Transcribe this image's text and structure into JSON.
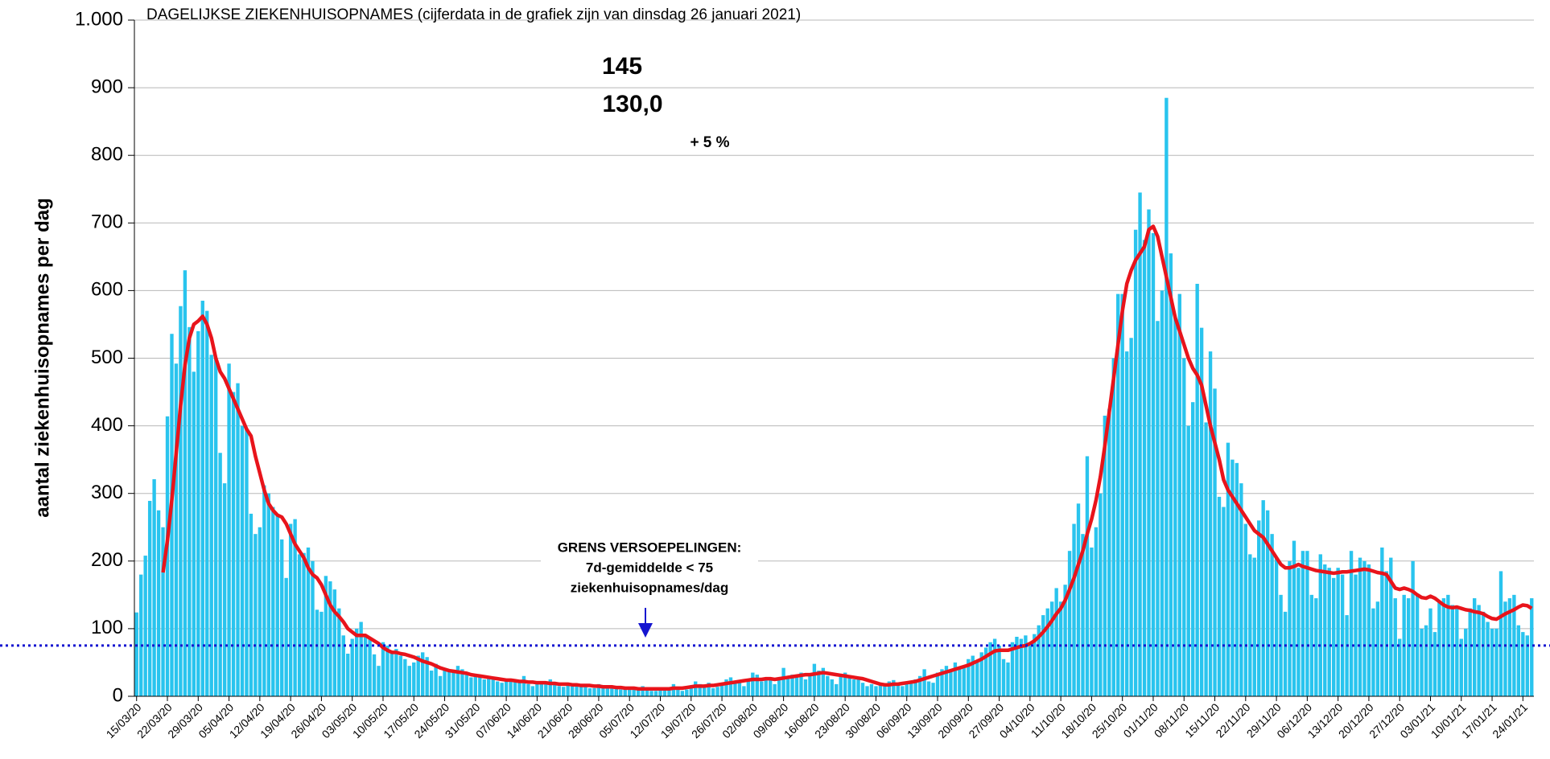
{
  "chart_data": {
    "type": "bar",
    "title": "DAGELIJKSE ZIEKENHUISOPNAMES (cijferdata in de grafiek zijn van dinsdag 26 januari 2021)",
    "y_label": "aantal ziekenhuisopnames per dag",
    "categories": [
      "15/03/20",
      null,
      null,
      null,
      null,
      null,
      null,
      "22/03/20",
      null,
      null,
      null,
      null,
      null,
      null,
      "29/03/20",
      null,
      null,
      null,
      null,
      null,
      null,
      "05/04/20",
      null,
      null,
      null,
      null,
      null,
      null,
      "12/04/20",
      null,
      null,
      null,
      null,
      null,
      null,
      "19/04/20",
      null,
      null,
      null,
      null,
      null,
      null,
      "26/04/20",
      null,
      null,
      null,
      null,
      null,
      null,
      "03/05/20",
      null,
      null,
      null,
      null,
      null,
      null,
      "10/05/20",
      null,
      null,
      null,
      null,
      null,
      null,
      "17/05/20",
      null,
      null,
      null,
      null,
      null,
      null,
      "24/05/20",
      null,
      null,
      null,
      null,
      null,
      null,
      "31/05/20",
      null,
      null,
      null,
      null,
      null,
      null,
      "07/06/20",
      null,
      null,
      null,
      null,
      null,
      null,
      "14/06/20",
      null,
      null,
      null,
      null,
      null,
      null,
      "21/06/20",
      null,
      null,
      null,
      null,
      null,
      null,
      "28/06/20",
      null,
      null,
      null,
      null,
      null,
      null,
      "05/07/20",
      null,
      null,
      null,
      null,
      null,
      null,
      "12/07/20",
      null,
      null,
      null,
      null,
      null,
      null,
      "19/07/20",
      null,
      null,
      null,
      null,
      null,
      null,
      "26/07/20",
      null,
      null,
      null,
      null,
      null,
      null,
      "02/08/20",
      null,
      null,
      null,
      null,
      null,
      null,
      "09/08/20",
      null,
      null,
      null,
      null,
      null,
      null,
      "16/08/20",
      null,
      null,
      null,
      null,
      null,
      null,
      "23/08/20",
      null,
      null,
      null,
      null,
      null,
      null,
      "30/08/20",
      null,
      null,
      null,
      null,
      null,
      null,
      "06/09/20",
      null,
      null,
      null,
      null,
      null,
      null,
      "13/09/20",
      null,
      null,
      null,
      null,
      null,
      null,
      "20/09/20",
      null,
      null,
      null,
      null,
      null,
      null,
      "27/09/20",
      null,
      null,
      null,
      null,
      null,
      null,
      "04/10/20",
      null,
      null,
      null,
      null,
      null,
      null,
      "11/10/20",
      null,
      null,
      null,
      null,
      null,
      null,
      "18/10/20",
      null,
      null,
      null,
      null,
      null,
      null,
      "25/10/20",
      null,
      null,
      null,
      null,
      null,
      null,
      "01/11/20",
      null,
      null,
      null,
      null,
      null,
      null,
      "08/11/20",
      null,
      null,
      null,
      null,
      null,
      null,
      "15/11/20",
      null,
      null,
      null,
      null,
      null,
      null,
      "22/11/20",
      null,
      null,
      null,
      null,
      null,
      null,
      "29/11/20",
      null,
      null,
      null,
      null,
      null,
      null,
      "06/12/20",
      null,
      null,
      null,
      null,
      null,
      null,
      "13/12/20",
      null,
      null,
      null,
      null,
      null,
      null,
      "20/12/20",
      null,
      null,
      null,
      null,
      null,
      null,
      "27/12/20",
      null,
      null,
      null,
      null,
      null,
      null,
      "03/01/21",
      null,
      null,
      null,
      null,
      null,
      null,
      "10/01/21",
      null,
      null,
      null,
      null,
      null,
      null,
      "17/01/21",
      null,
      null,
      null,
      null,
      null,
      null,
      "24/01/21",
      null,
      null
    ],
    "series": [
      {
        "type": "bar",
        "color": "#29c4ee",
        "values": [
          124,
          180,
          208,
          289,
          321,
          275,
          250,
          414,
          536,
          492,
          577,
          630,
          546,
          480,
          540,
          585,
          570,
          505,
          500,
          360,
          315,
          492,
          450,
          463,
          400,
          395,
          270,
          240,
          250,
          312,
          300,
          280,
          268,
          232,
          175,
          255,
          262,
          210,
          212,
          220,
          200,
          128,
          125,
          178,
          170,
          158,
          130,
          90,
          63,
          85,
          100,
          110,
          90,
          85,
          62,
          45,
          80,
          75,
          65,
          70,
          60,
          55,
          45,
          50,
          60,
          65,
          58,
          38,
          48,
          30,
          42,
          38,
          35,
          45,
          40,
          32,
          28,
          30,
          28,
          25,
          30,
          28,
          22,
          20,
          25,
          24,
          22,
          20,
          30,
          18,
          15,
          22,
          20,
          18,
          25,
          20,
          15,
          14,
          20,
          18,
          15,
          18,
          16,
          12,
          12,
          18,
          15,
          14,
          16,
          12,
          10,
          10,
          14,
          12,
          10,
          15,
          12,
          8,
          8,
          12,
          10,
          10,
          18,
          12,
          8,
          10,
          15,
          22,
          18,
          14,
          20,
          12,
          14,
          20,
          25,
          28,
          22,
          20,
          15,
          25,
          35,
          32,
          22,
          24,
          28,
          18,
          25,
          42,
          30,
          32,
          28,
          35,
          25,
          32,
          48,
          38,
          42,
          30,
          25,
          18,
          30,
          35,
          30,
          25,
          28,
          20,
          15,
          18,
          15,
          18,
          16,
          22,
          24,
          20,
          15,
          20,
          22,
          25,
          30,
          40,
          22,
          20,
          35,
          40,
          45,
          38,
          50,
          42,
          45,
          55,
          60,
          50,
          65,
          72,
          80,
          85,
          75,
          55,
          50,
          80,
          88,
          85,
          90,
          75,
          92,
          105,
          120,
          130,
          140,
          160,
          140,
          165,
          215,
          255,
          285,
          240,
          355,
          220,
          250,
          300,
          415,
          425,
          500,
          595,
          595,
          510,
          530,
          690,
          745,
          675,
          720,
          685,
          555,
          600,
          885,
          655,
          560,
          595,
          500,
          400,
          435,
          610,
          545,
          405,
          510,
          455,
          295,
          280,
          375,
          350,
          345,
          315,
          255,
          210,
          205,
          260,
          290,
          275,
          240,
          205,
          150,
          125,
          200,
          230,
          190,
          215,
          215,
          150,
          145,
          210,
          195,
          190,
          175,
          190,
          180,
          120,
          215,
          180,
          205,
          200,
          195,
          130,
          140,
          220,
          185,
          205,
          145,
          85,
          150,
          145,
          200,
          150,
          100,
          105,
          130,
          95,
          140,
          145,
          150,
          135,
          130,
          85,
          100,
          130,
          145,
          135,
          125,
          110,
          100,
          100,
          185,
          140,
          145,
          150,
          105,
          95,
          90,
          145
        ]
      },
      {
        "type": "line",
        "color": "#e8141b",
        "values": [
          null,
          null,
          null,
          null,
          null,
          null,
          183,
          230,
          290,
          360,
          430,
          490,
          530,
          550,
          555,
          562,
          550,
          530,
          500,
          480,
          470,
          455,
          440,
          425,
          410,
          395,
          385,
          355,
          330,
          305,
          285,
          275,
          268,
          265,
          255,
          240,
          225,
          215,
          205,
          190,
          180,
          175,
          165,
          150,
          135,
          125,
          118,
          110,
          100,
          95,
          90,
          90,
          90,
          86,
          82,
          78,
          72,
          68,
          65,
          65,
          63,
          62,
          60,
          58,
          55,
          52,
          50,
          48,
          45,
          42,
          40,
          38,
          37,
          36,
          35,
          34,
          32,
          31,
          30,
          29,
          28,
          27,
          26,
          25,
          24,
          24,
          23,
          22,
          22,
          21,
          21,
          20,
          20,
          20,
          19,
          19,
          18,
          18,
          18,
          17,
          17,
          16,
          16,
          16,
          15,
          15,
          14,
          14,
          14,
          13,
          13,
          12,
          12,
          12,
          11,
          11,
          11,
          11,
          11,
          11,
          11,
          11,
          12,
          12,
          12,
          13,
          14,
          15,
          15,
          15,
          16,
          16,
          17,
          18,
          19,
          20,
          21,
          22,
          23,
          24,
          25,
          25,
          25,
          26,
          26,
          25,
          26,
          27,
          28,
          29,
          30,
          31,
          32,
          32,
          33,
          34,
          35,
          34,
          33,
          32,
          31,
          30,
          29,
          28,
          27,
          26,
          24,
          22,
          20,
          18,
          17,
          17,
          18,
          18,
          19,
          20,
          21,
          22,
          24,
          26,
          28,
          30,
          32,
          34,
          36,
          38,
          40,
          42,
          44,
          46,
          49,
          52,
          55,
          59,
          63,
          67,
          68,
          68,
          68,
          70,
          72,
          74,
          75,
          78,
          82,
          88,
          95,
          103,
          112,
          122,
          130,
          142,
          158,
          175,
          195,
          215,
          240,
          262,
          290,
          325,
          370,
          420,
          470,
          520,
          570,
          610,
          630,
          645,
          655,
          665,
          690,
          695,
          680,
          650,
          620,
          590,
          560,
          540,
          520,
          500,
          485,
          475,
          460,
          430,
          400,
          375,
          350,
          320,
          305,
          295,
          285,
          275,
          265,
          255,
          245,
          240,
          235,
          225,
          215,
          205,
          195,
          190,
          190,
          192,
          195,
          192,
          190,
          188,
          186,
          185,
          184,
          183,
          182,
          183,
          184,
          184,
          185,
          186,
          187,
          188,
          187,
          185,
          183,
          182,
          180,
          170,
          160,
          158,
          160,
          158,
          155,
          150,
          146,
          145,
          148,
          145,
          140,
          135,
          132,
          131,
          132,
          130,
          128,
          127,
          125,
          124,
          122,
          118,
          115,
          114,
          118,
          122,
          125,
          128,
          132,
          135,
          134,
          130
        ]
      }
    ],
    "ylim": [
      0,
      1000
    ],
    "yticks": [
      0,
      100,
      200,
      300,
      400,
      500,
      600,
      700,
      800,
      900,
      {
        "value": 1000,
        "label": "1.000"
      }
    ],
    "grid": true,
    "threshold": {
      "value": 75,
      "color": "#1515d0",
      "lines": [
        "GRENS VERSOEPELINGEN:",
        "7d-gemiddelde < 75",
        "ziekenhuisopnames/dag"
      ]
    },
    "annotations": [
      "145",
      "130,0",
      "+ 5 %"
    ]
  }
}
